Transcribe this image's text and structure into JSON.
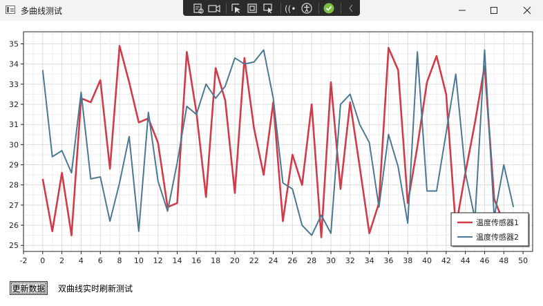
{
  "window": {
    "title": "多曲线测试"
  },
  "footer": {
    "button_label": "更新数据",
    "description": "双曲线实时刷新测试"
  },
  "colors": {
    "series1": "#d13a49",
    "series2": "#4a7891"
  },
  "chart_data": {
    "type": "line",
    "title": "",
    "xlabel": "",
    "ylabel": "",
    "xlim": [
      -2,
      51
    ],
    "ylim": [
      24.7,
      35.6
    ],
    "xticks": [
      -2,
      0,
      2,
      4,
      6,
      8,
      10,
      12,
      14,
      16,
      18,
      20,
      22,
      24,
      26,
      28,
      30,
      32,
      34,
      36,
      38,
      40,
      42,
      44,
      46,
      48,
      50
    ],
    "yticks": [
      25,
      26,
      27,
      28,
      29,
      30,
      31,
      32,
      33,
      34,
      35
    ],
    "grid": true,
    "legend": "bottom-right",
    "x": [
      0,
      1,
      2,
      3,
      4,
      5,
      6,
      7,
      8,
      9,
      10,
      11,
      12,
      13,
      14,
      15,
      16,
      17,
      18,
      19,
      20,
      21,
      22,
      23,
      24,
      25,
      26,
      27,
      28,
      29,
      30,
      31,
      32,
      33,
      34,
      35,
      36,
      37,
      38,
      39,
      40,
      41,
      42,
      43,
      44,
      45,
      46,
      47,
      48,
      49
    ],
    "series": [
      {
        "name": "温度传感器1",
        "values": [
          28.3,
          25.7,
          28.6,
          25.5,
          32.3,
          32.1,
          33.2,
          28.8,
          34.9,
          33.1,
          31.1,
          31.3,
          30.1,
          26.9,
          27.1,
          34.6,
          31.6,
          27.4,
          33.8,
          32.2,
          27.6,
          34.3,
          30.8,
          28.5,
          32.1,
          26.2,
          29.5,
          28.0,
          32.0,
          25.4,
          33.1,
          27.8,
          32.1,
          28.9,
          25.6,
          27.1,
          34.8,
          33.7,
          27.1,
          29.9,
          33.1,
          34.4,
          32.5,
          25.9,
          28.6,
          31.1,
          33.9,
          27.3,
          26.1,
          26.6
        ]
      },
      {
        "name": "温度传感器2",
        "values": [
          33.7,
          29.4,
          29.7,
          28.6,
          32.6,
          28.3,
          28.4,
          26.2,
          28.1,
          30.4,
          25.7,
          31.6,
          28.2,
          26.7,
          29.1,
          31.9,
          31.5,
          33.0,
          32.3,
          32.9,
          34.3,
          34.0,
          34.1,
          34.7,
          32.3,
          28.1,
          27.8,
          26.0,
          25.5,
          26.5,
          25.6,
          32.0,
          32.5,
          31.0,
          30.1,
          26.9,
          30.5,
          28.9,
          26.1,
          34.6,
          27.7,
          27.7,
          30.6,
          33.5,
          28.6,
          26.3,
          34.7,
          26.4,
          29.0,
          26.9
        ]
      }
    ]
  }
}
